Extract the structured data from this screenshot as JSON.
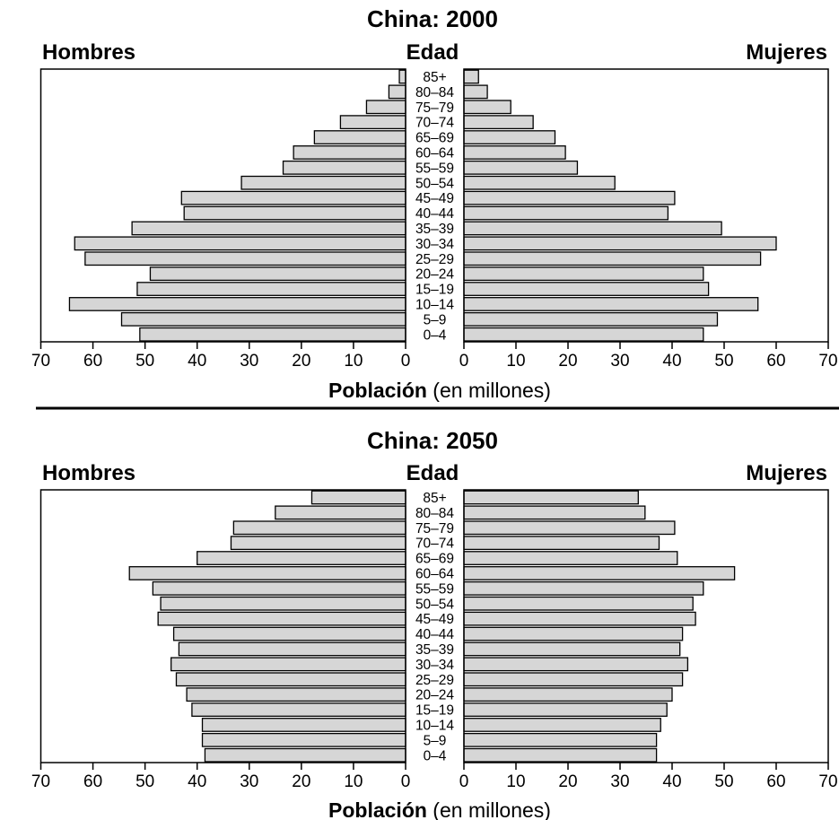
{
  "chart_data": [
    {
      "type": "bar",
      "title": "China: 2000",
      "left_label": "Hombres",
      "center_label": "Edad",
      "right_label": "Mujeres",
      "xlabel_bold": "Población",
      "xlabel_rest": " (en millones)",
      "xlim": [
        0,
        70
      ],
      "xticks": [
        "70",
        "60",
        "50",
        "40",
        "30",
        "20",
        "10",
        "0",
        "0",
        "10",
        "20",
        "30",
        "40",
        "50",
        "60",
        "70"
      ],
      "categories": [
        "85+",
        "80–84",
        "75–79",
        "70–74",
        "65–69",
        "60–64",
        "55–59",
        "50–54",
        "45–49",
        "40–44",
        "35–39",
        "30–34",
        "25–29",
        "20–24",
        "15–19",
        "10–14",
        "5–9",
        "0–4"
      ],
      "series": [
        {
          "name": "Hombres",
          "values": [
            1.2,
            3.2,
            7.5,
            12.5,
            17.5,
            21.5,
            23.5,
            31.5,
            43,
            42.5,
            52.5,
            63.5,
            61.5,
            49,
            51.5,
            64.5,
            54.5,
            51
          ]
        },
        {
          "name": "Mujeres",
          "values": [
            2.8,
            4.5,
            9,
            13.3,
            17.5,
            19.5,
            21.8,
            29,
            40.5,
            39.2,
            49.5,
            60,
            57,
            46,
            47,
            56.5,
            48.7,
            46
          ]
        }
      ]
    },
    {
      "type": "bar",
      "title": "China: 2050",
      "left_label": "Hombres",
      "center_label": "Edad",
      "right_label": "Mujeres",
      "xlabel_bold": "Población",
      "xlabel_rest": " (en millones)",
      "xlim": [
        0,
        70
      ],
      "xticks": [
        "70",
        "60",
        "50",
        "40",
        "30",
        "20",
        "10",
        "0",
        "0",
        "10",
        "20",
        "30",
        "40",
        "50",
        "60",
        "70"
      ],
      "categories": [
        "85+",
        "80–84",
        "75–79",
        "70–74",
        "65–69",
        "60–64",
        "55–59",
        "50–54",
        "45–49",
        "40–44",
        "35–39",
        "30–34",
        "25–29",
        "20–24",
        "15–19",
        "10–14",
        "5–9",
        "0–4"
      ],
      "series": [
        {
          "name": "Hombres",
          "values": [
            18,
            25,
            33,
            33.5,
            40,
            53,
            48.5,
            47,
            47.5,
            44.5,
            43.5,
            45,
            44,
            42,
            41,
            39,
            39,
            38.5
          ]
        },
        {
          "name": "Mujeres",
          "values": [
            33.5,
            34.8,
            40.5,
            37.5,
            41,
            52,
            46,
            44,
            44.5,
            42,
            41.5,
            43,
            42,
            40,
            39,
            37.8,
            37,
            37
          ]
        }
      ]
    }
  ]
}
